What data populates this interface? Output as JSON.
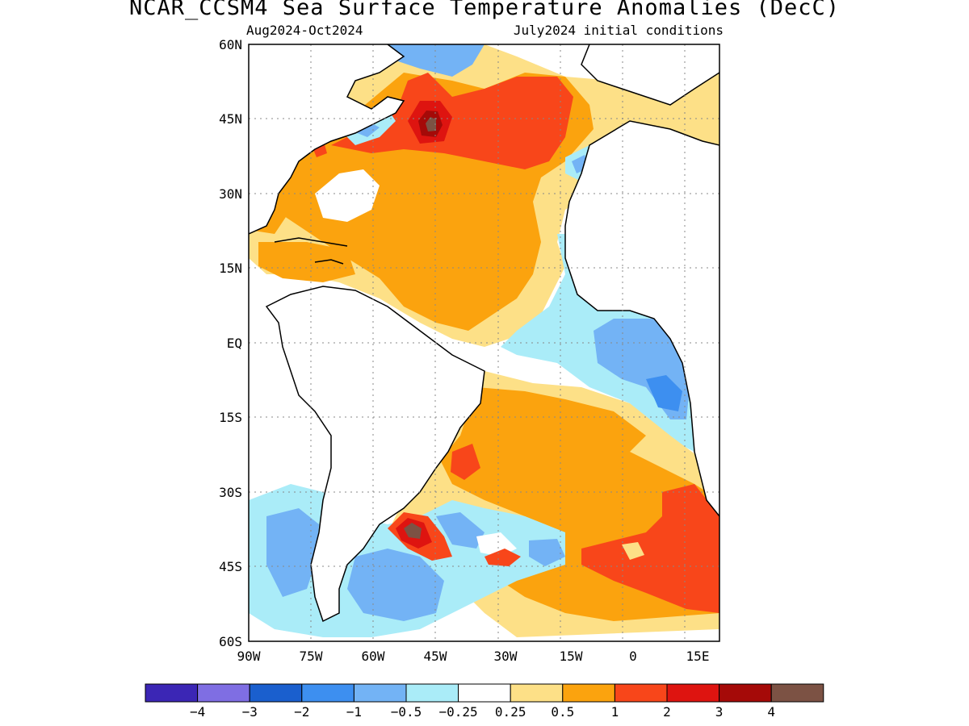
{
  "title": "NCAR_CCSM4 Sea Surface Temperature Anomalies (DecC)",
  "period": "Aug2024-Oct2024",
  "init": "July2024 initial conditions",
  "lat_ticks": [
    "60N",
    "45N",
    "30N",
    "15N",
    "EQ",
    "15S",
    "30S",
    "45S",
    "60S"
  ],
  "lon_ticks": [
    "90W",
    "75W",
    "60W",
    "45W",
    "30W",
    "15W",
    "0",
    "15E"
  ],
  "legend": {
    "labels": [
      "-4",
      "-3",
      "-2",
      "-1",
      "-0.5",
      "-0.25",
      "0.25",
      "0.5",
      "1",
      "2",
      "3",
      "4"
    ],
    "colors": [
      "#3b26b5",
      "#7f6ee3",
      "#1a5fce",
      "#3d8ff0",
      "#73b3f5",
      "#aaecf8",
      "#ffffff",
      "#fde087",
      "#fba30e",
      "#f8461a",
      "#de1410",
      "#a50a08",
      "#7c5244"
    ]
  },
  "anomaly_colors": {
    "n025": "#aaecf8",
    "n05": "#73b3f5",
    "n1": "#3d8ff0",
    "p025": "#fde087",
    "p05": "#fba30e",
    "p1": "#f8461a",
    "p2": "#de1410",
    "p3": "#a50a08",
    "p4": "#7c5244"
  }
}
